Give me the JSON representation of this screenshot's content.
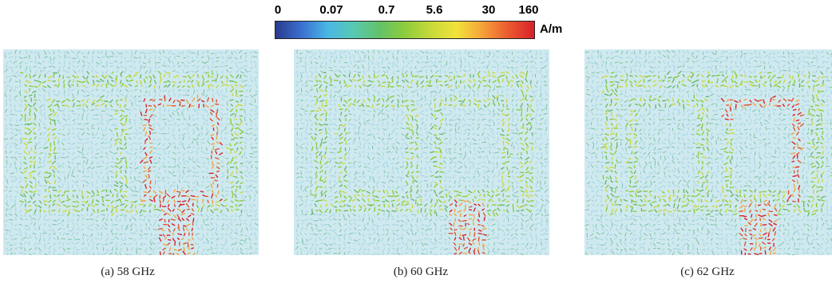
{
  "colorbar": {
    "ticks": [
      "0",
      "0.07",
      "0.7",
      "5.6",
      "30",
      "160"
    ],
    "unit": "A/m",
    "stops": [
      "#2a3a8c",
      "#3a6fcf",
      "#49b6e6",
      "#58c9b3",
      "#62c26a",
      "#8ccc3c",
      "#c8d93a",
      "#f1e23a",
      "#f6a23a",
      "#ea5a2e",
      "#d8202a"
    ]
  },
  "panels": [
    {
      "caption": "(a) 58 GHz",
      "hotspot": "right"
    },
    {
      "caption": "(b) 60 GHz",
      "hotspot": "feed"
    },
    {
      "caption": "(c) 62 GHz",
      "hotspot": "right-top"
    }
  ],
  "colors": {
    "background_field": "#cfe9ef",
    "low_arrow": "#9fd4e0",
    "mid_arrow": "#6ab86a",
    "high_arrow": "#e0552c"
  }
}
